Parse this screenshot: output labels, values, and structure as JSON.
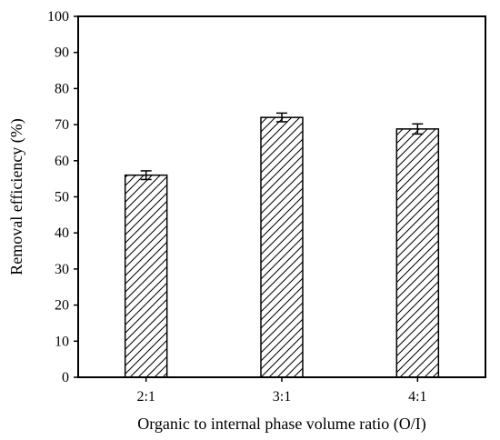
{
  "chart_data": {
    "type": "bar",
    "title": "",
    "categories": [
      "2:1",
      "3:1",
      "4:1"
    ],
    "values": [
      56,
      72,
      68.8
    ],
    "errors": [
      1.2,
      1.2,
      1.4
    ],
    "xlabel": "Organic to internal phase volume ratio (O/I)",
    "ylabel": "Removal efficiency (%)",
    "ylim": [
      0,
      100
    ],
    "yticks": [
      0,
      10,
      20,
      30,
      40,
      50,
      60,
      70,
      80,
      90,
      100
    ],
    "ytick_labels": [
      "0",
      "10",
      "20",
      "30",
      "40",
      "50",
      "60",
      "70",
      "80",
      "90",
      "100"
    ],
    "grid": false,
    "legend": "none",
    "bar_fill": "diagonal-hatch",
    "colors": {
      "bar_stroke": "#000000",
      "hatch": "#000000",
      "axis": "#000000",
      "background": "#ffffff"
    }
  }
}
